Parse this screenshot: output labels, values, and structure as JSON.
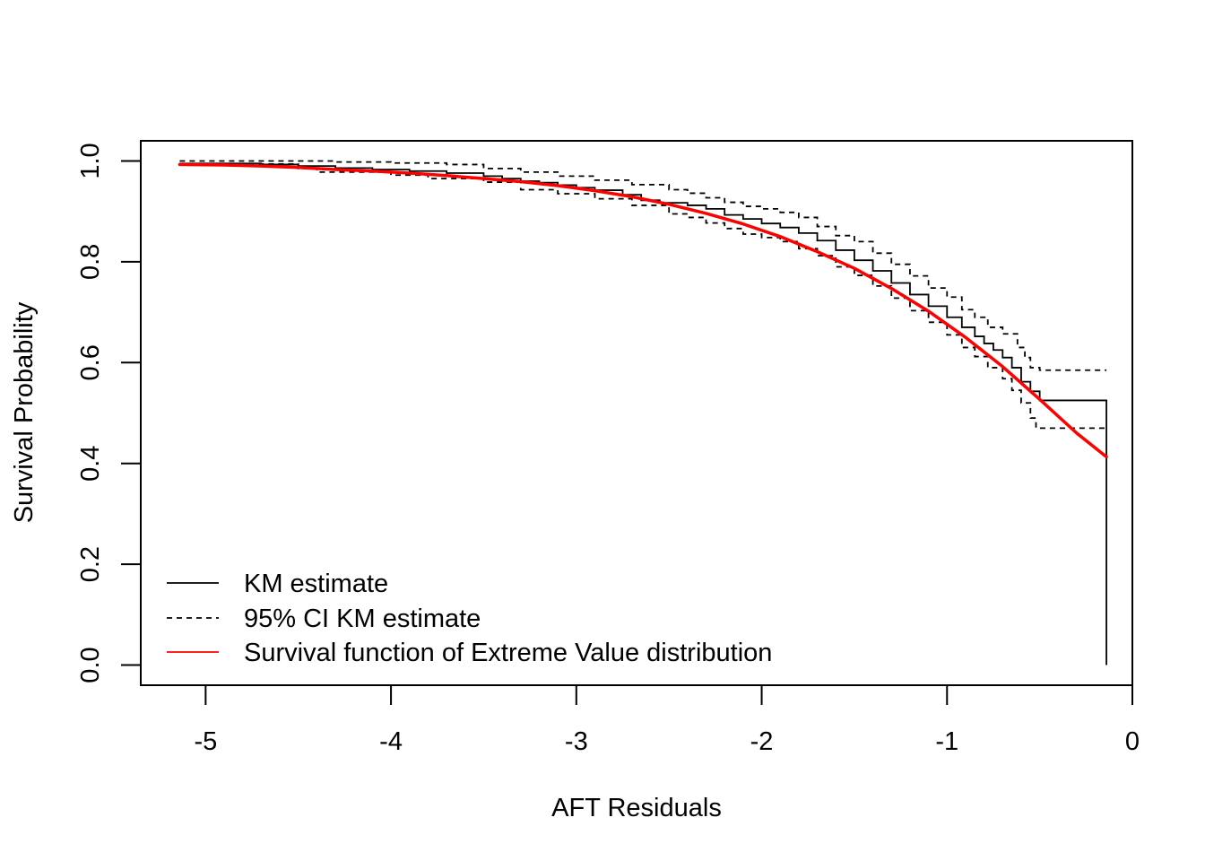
{
  "chart_data": {
    "type": "line",
    "title": "",
    "xlabel": "AFT Residuals",
    "ylabel": "Survival Probability",
    "xlim": [
      -5.35,
      0.0
    ],
    "ylim": [
      -0.04,
      1.04
    ],
    "x_ticks": [
      -5,
      -4,
      -3,
      -2,
      -1,
      0
    ],
    "x_tick_labels": [
      "-5",
      "-4",
      "-3",
      "-2",
      "-1",
      "0"
    ],
    "y_ticks": [
      0.0,
      0.2,
      0.4,
      0.6,
      0.8,
      1.0
    ],
    "y_tick_labels": [
      "0.0",
      "0.2",
      "0.4",
      "0.6",
      "0.8",
      "1.0"
    ],
    "grid": false,
    "legend_position": "bottom-left",
    "series": [
      {
        "name": "KM estimate",
        "style": "step",
        "color": "#000000",
        "dash": "solid",
        "points": [
          [
            -5.14,
            0.995
          ],
          [
            -4.9,
            0.995
          ],
          [
            -4.7,
            0.993
          ],
          [
            -4.5,
            0.99
          ],
          [
            -4.3,
            0.986
          ],
          [
            -4.1,
            0.983
          ],
          [
            -3.9,
            0.98
          ],
          [
            -3.7,
            0.976
          ],
          [
            -3.5,
            0.97
          ],
          [
            -3.4,
            0.965
          ],
          [
            -3.3,
            0.96
          ],
          [
            -3.2,
            0.957
          ],
          [
            -3.1,
            0.952
          ],
          [
            -3.0,
            0.947
          ],
          [
            -2.9,
            0.942
          ],
          [
            -2.75,
            0.933
          ],
          [
            -2.65,
            0.922
          ],
          [
            -2.55,
            0.917
          ],
          [
            -2.4,
            0.912
          ],
          [
            -2.3,
            0.905
          ],
          [
            -2.2,
            0.893
          ],
          [
            -2.1,
            0.885
          ],
          [
            -2.0,
            0.876
          ],
          [
            -1.9,
            0.868
          ],
          [
            -1.8,
            0.857
          ],
          [
            -1.7,
            0.842
          ],
          [
            -1.6,
            0.823
          ],
          [
            -1.5,
            0.803
          ],
          [
            -1.4,
            0.782
          ],
          [
            -1.3,
            0.758
          ],
          [
            -1.2,
            0.735
          ],
          [
            -1.1,
            0.712
          ],
          [
            -1.0,
            0.69
          ],
          [
            -0.92,
            0.67
          ],
          [
            -0.85,
            0.652
          ],
          [
            -0.8,
            0.638
          ],
          [
            -0.75,
            0.625
          ],
          [
            -0.7,
            0.61
          ],
          [
            -0.65,
            0.59
          ],
          [
            -0.6,
            0.562
          ],
          [
            -0.55,
            0.543
          ],
          [
            -0.5,
            0.525
          ],
          [
            -0.14,
            0.525
          ],
          [
            -0.14,
            0.0
          ]
        ]
      },
      {
        "name": "95% CI KM estimate",
        "style": "step",
        "color": "#000000",
        "dash": "dashed",
        "points": [
          [
            -5.14,
            1.0
          ],
          [
            -4.5,
            1.0
          ],
          [
            -4.3,
            0.998
          ],
          [
            -4.0,
            0.996
          ],
          [
            -3.7,
            0.993
          ],
          [
            -3.5,
            0.985
          ],
          [
            -3.3,
            0.978
          ],
          [
            -3.1,
            0.97
          ],
          [
            -2.9,
            0.962
          ],
          [
            -2.7,
            0.953
          ],
          [
            -2.5,
            0.943
          ],
          [
            -2.4,
            0.936
          ],
          [
            -2.3,
            0.927
          ],
          [
            -2.2,
            0.918
          ],
          [
            -2.1,
            0.91
          ],
          [
            -2.0,
            0.905
          ],
          [
            -1.9,
            0.898
          ],
          [
            -1.8,
            0.888
          ],
          [
            -1.7,
            0.87
          ],
          [
            -1.6,
            0.852
          ],
          [
            -1.5,
            0.84
          ],
          [
            -1.4,
            0.817
          ],
          [
            -1.3,
            0.795
          ],
          [
            -1.2,
            0.772
          ],
          [
            -1.1,
            0.748
          ],
          [
            -1.0,
            0.73
          ],
          [
            -0.92,
            0.705
          ],
          [
            -0.85,
            0.69
          ],
          [
            -0.78,
            0.67
          ],
          [
            -0.7,
            0.657
          ],
          [
            -0.62,
            0.63
          ],
          [
            -0.58,
            0.61
          ],
          [
            -0.55,
            0.59
          ],
          [
            -0.5,
            0.585
          ],
          [
            -0.14,
            0.585
          ]
        ]
      },
      {
        "name": "95% CI KM estimate",
        "style": "step",
        "color": "#000000",
        "dash": "dashed",
        "points": [
          [
            -5.14,
            0.994
          ],
          [
            -4.5,
            0.985
          ],
          [
            -4.4,
            0.978
          ],
          [
            -4.0,
            0.972
          ],
          [
            -3.8,
            0.965
          ],
          [
            -3.5,
            0.958
          ],
          [
            -3.3,
            0.943
          ],
          [
            -3.1,
            0.935
          ],
          [
            -2.9,
            0.925
          ],
          [
            -2.7,
            0.912
          ],
          [
            -2.5,
            0.895
          ],
          [
            -2.4,
            0.888
          ],
          [
            -2.3,
            0.877
          ],
          [
            -2.2,
            0.866
          ],
          [
            -2.1,
            0.855
          ],
          [
            -2.0,
            0.848
          ],
          [
            -1.9,
            0.84
          ],
          [
            -1.8,
            0.826
          ],
          [
            -1.7,
            0.812
          ],
          [
            -1.6,
            0.79
          ],
          [
            -1.5,
            0.773
          ],
          [
            -1.4,
            0.752
          ],
          [
            -1.3,
            0.728
          ],
          [
            -1.2,
            0.703
          ],
          [
            -1.1,
            0.68
          ],
          [
            -1.0,
            0.655
          ],
          [
            -0.92,
            0.63
          ],
          [
            -0.85,
            0.612
          ],
          [
            -0.78,
            0.59
          ],
          [
            -0.7,
            0.568
          ],
          [
            -0.65,
            0.545
          ],
          [
            -0.6,
            0.52
          ],
          [
            -0.55,
            0.49
          ],
          [
            -0.52,
            0.47
          ],
          [
            -0.14,
            0.47
          ]
        ]
      },
      {
        "name": "Survival function of Extreme Value distribution",
        "style": "line",
        "color": "#ff0000",
        "dash": "solid",
        "points": [
          [
            -5.14,
            0.993
          ],
          [
            -4.9,
            0.992
          ],
          [
            -4.7,
            0.99
          ],
          [
            -4.5,
            0.987
          ],
          [
            -4.3,
            0.983
          ],
          [
            -4.1,
            0.98
          ],
          [
            -3.9,
            0.976
          ],
          [
            -3.7,
            0.971
          ],
          [
            -3.5,
            0.965
          ],
          [
            -3.3,
            0.959
          ],
          [
            -3.1,
            0.951
          ],
          [
            -2.9,
            0.941
          ],
          [
            -2.7,
            0.929
          ],
          [
            -2.5,
            0.914
          ],
          [
            -2.3,
            0.896
          ],
          [
            -2.1,
            0.875
          ],
          [
            -1.9,
            0.85
          ],
          [
            -1.7,
            0.82
          ],
          [
            -1.5,
            0.787
          ],
          [
            -1.3,
            0.747
          ],
          [
            -1.1,
            0.702
          ],
          [
            -0.9,
            0.65
          ],
          [
            -0.7,
            0.592
          ],
          [
            -0.5,
            0.527
          ],
          [
            -0.3,
            0.46
          ],
          [
            -0.14,
            0.413
          ]
        ]
      }
    ]
  }
}
